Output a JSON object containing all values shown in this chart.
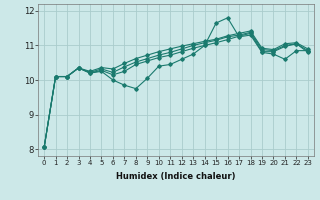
{
  "xlabel": "Humidex (Indice chaleur)",
  "ylabel": "",
  "xlim": [
    -0.5,
    23.5
  ],
  "ylim": [
    7.8,
    12.2
  ],
  "yticks": [
    8,
    9,
    10,
    11,
    12
  ],
  "xticks": [
    0,
    1,
    2,
    3,
    4,
    5,
    6,
    7,
    8,
    9,
    10,
    11,
    12,
    13,
    14,
    15,
    16,
    17,
    18,
    19,
    20,
    21,
    22,
    23
  ],
  "bg_color": "#cce8e8",
  "grid_color": "#aacccc",
  "line_color": "#1a7a6e",
  "lines": [
    [
      8.05,
      10.1,
      10.1,
      10.35,
      10.2,
      10.25,
      10.0,
      9.85,
      9.75,
      10.05,
      10.4,
      10.45,
      10.6,
      10.75,
      11.0,
      11.65,
      11.8,
      11.25,
      11.3,
      10.8,
      10.75,
      10.6,
      10.85,
      10.85
    ],
    [
      8.05,
      10.1,
      10.1,
      10.35,
      10.2,
      10.28,
      10.15,
      10.25,
      10.45,
      10.55,
      10.65,
      10.72,
      10.82,
      10.92,
      11.0,
      11.08,
      11.17,
      11.27,
      11.35,
      10.82,
      10.82,
      10.97,
      11.05,
      10.8
    ],
    [
      8.05,
      10.1,
      10.1,
      10.35,
      10.22,
      10.32,
      10.22,
      10.38,
      10.52,
      10.62,
      10.72,
      10.8,
      10.9,
      11.0,
      11.08,
      11.15,
      11.25,
      11.3,
      11.38,
      10.88,
      10.85,
      11.0,
      11.05,
      10.85
    ],
    [
      8.05,
      10.1,
      10.1,
      10.35,
      10.25,
      10.36,
      10.32,
      10.48,
      10.62,
      10.72,
      10.82,
      10.9,
      10.98,
      11.05,
      11.12,
      11.18,
      11.28,
      11.35,
      11.42,
      10.92,
      10.88,
      11.05,
      11.08,
      10.9
    ]
  ]
}
